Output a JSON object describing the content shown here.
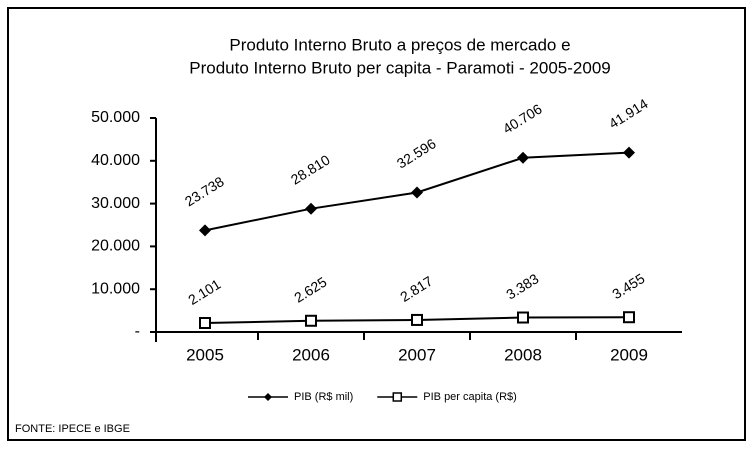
{
  "chart_data": {
    "type": "line",
    "title": [
      "Produto Interno Bruto a preços de mercado e",
      "Produto Interno Bruto per capita - Paramoti - 2005-2009"
    ],
    "categories": [
      "2005",
      "2006",
      "2007",
      "2008",
      "2009"
    ],
    "series": [
      {
        "name": "PIB (R$ mil)",
        "color": "#000000",
        "marker": "diamond",
        "values": [
          23738,
          28810,
          32596,
          40706,
          41914
        ],
        "value_labels": [
          "23.738",
          "28.810",
          "32.596",
          "40.706",
          "41.914"
        ]
      },
      {
        "name": "PIB per capita (R$)",
        "color": "#000000",
        "marker": "square",
        "values": [
          2101,
          2625,
          2817,
          3383,
          3455
        ],
        "value_labels": [
          "2.101",
          "2.625",
          "2.817",
          "3.383",
          "3.455"
        ]
      }
    ],
    "ylim": [
      0,
      50000
    ],
    "yticks": [
      {
        "value": 0,
        "label": "-"
      },
      {
        "value": 10000,
        "label": "10.000"
      },
      {
        "value": 20000,
        "label": "20.000"
      },
      {
        "value": 30000,
        "label": "30.000"
      },
      {
        "value": 40000,
        "label": "40.000"
      },
      {
        "value": 50000,
        "label": "50.000"
      }
    ],
    "legend": "bottom",
    "source": "FONTE: IPECE e IBGE"
  }
}
